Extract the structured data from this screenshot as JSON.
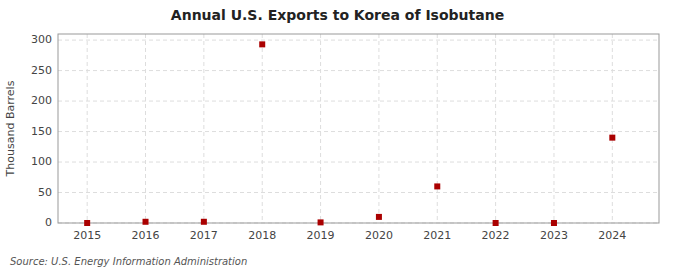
{
  "chart_data": {
    "type": "scatter",
    "title": "Annual U.S. Exports to Korea of Isobutane",
    "y_label": "Thousand Barrels",
    "annotations": [
      "Source: U.S. Energy Information Administration"
    ],
    "x": [
      2015,
      2016,
      2017,
      2018,
      2019,
      2020,
      2021,
      2022,
      2023,
      2024
    ],
    "values": [
      0,
      2,
      2,
      293,
      1,
      10,
      60,
      0,
      0,
      140
    ],
    "color": "#aa0000",
    "marker": "square",
    "xlim": [
      2014.5,
      2024.8
    ],
    "ylim": [
      0,
      310
    ],
    "xticks": [
      2015,
      2016,
      2017,
      2018,
      2019,
      2020,
      2021,
      2022,
      2023,
      2024
    ],
    "yticks": [
      0,
      50,
      100,
      150,
      200,
      250,
      300
    ],
    "grid": true
  }
}
